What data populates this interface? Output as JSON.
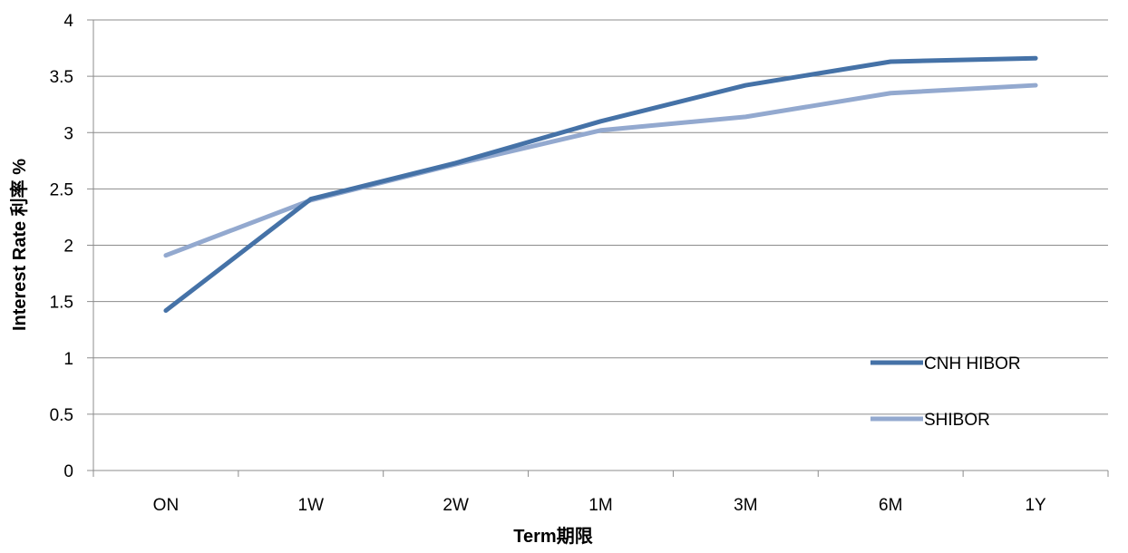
{
  "chart_data": {
    "type": "line",
    "title": "",
    "categories": [
      "ON",
      "1W",
      "2W",
      "1M",
      "3M",
      "6M",
      "1Y"
    ],
    "series": [
      {
        "name": "CNH HIBOR",
        "color": "#4572a7",
        "values": [
          1.42,
          2.41,
          2.73,
          3.1,
          3.42,
          3.63,
          3.66
        ]
      },
      {
        "name": "SHIBOR",
        "color": "#93a9cf",
        "values": [
          1.91,
          2.4,
          2.72,
          3.02,
          3.14,
          3.35,
          3.42
        ]
      }
    ],
    "xlabel": "Term期限",
    "ylabel": "Interest Rate 利率 %",
    "ylim": [
      0,
      4
    ],
    "yticks": [
      "0",
      "0.5",
      "1",
      "1.5",
      "2",
      "2.5",
      "3",
      "3.5",
      "4"
    ],
    "grid": true,
    "legend_position": "bottom-right"
  }
}
